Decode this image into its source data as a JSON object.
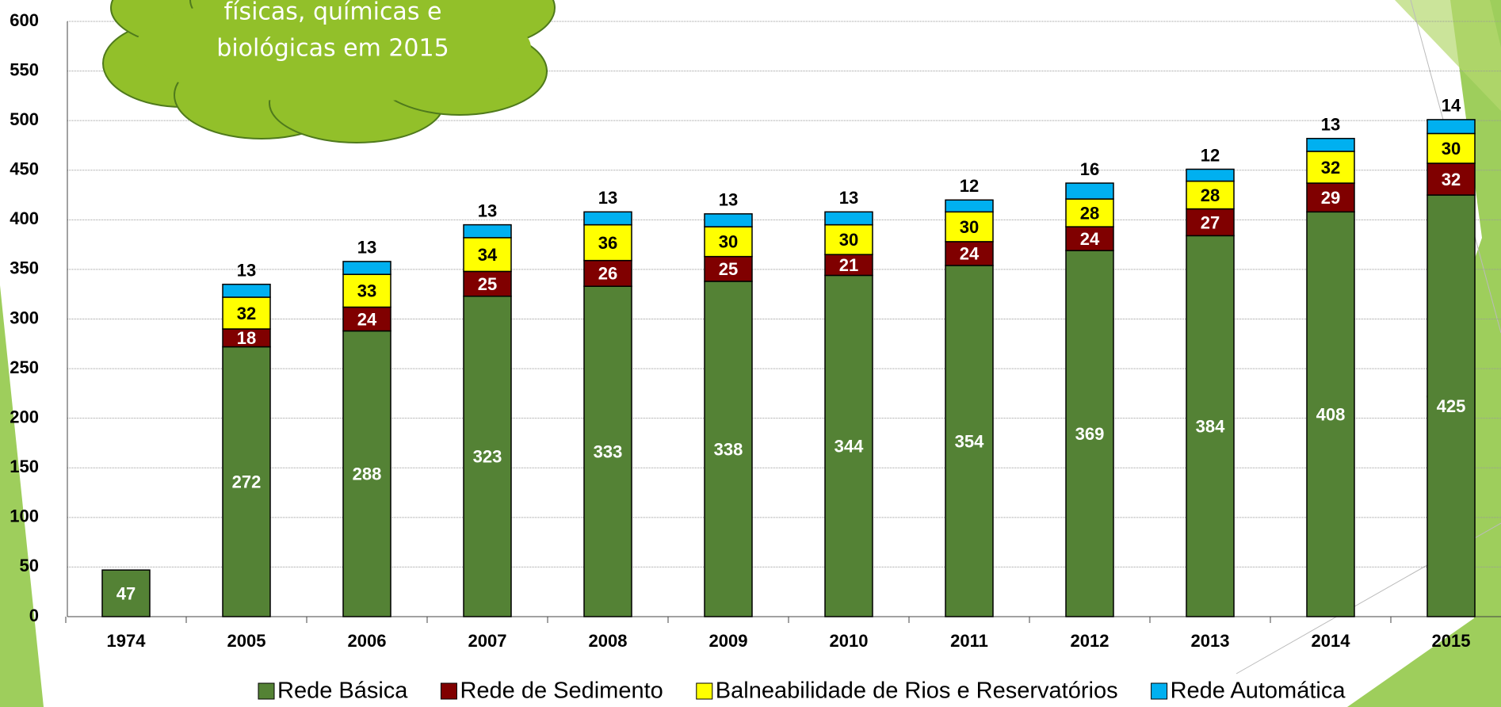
{
  "chart_data": {
    "type": "stacked-bar",
    "annotation": [
      "físicas, químicas e",
      "biológicas em 2015"
    ],
    "categories": [
      "1974",
      "2005",
      "2006",
      "2007",
      "2008",
      "2009",
      "2010",
      "2011",
      "2012",
      "2013",
      "2014",
      "2015"
    ],
    "series": [
      {
        "name": "Rede Básica",
        "color": "#548235",
        "values": [
          47,
          272,
          288,
          323,
          333,
          338,
          344,
          354,
          369,
          384,
          408,
          425
        ]
      },
      {
        "name": "Rede de Sedimento",
        "color": "#800000",
        "values": [
          null,
          18,
          24,
          25,
          26,
          25,
          21,
          24,
          24,
          27,
          29,
          32
        ]
      },
      {
        "name": "Balneabilidade de Rios e Reservatórios",
        "color": "#ffff00",
        "values": [
          null,
          32,
          33,
          34,
          36,
          30,
          30,
          30,
          28,
          28,
          32,
          30
        ]
      },
      {
        "name": "Rede Automática",
        "color": "#00b0f0",
        "values": [
          null,
          13,
          13,
          13,
          13,
          13,
          13,
          12,
          16,
          12,
          13,
          14
        ]
      }
    ],
    "ylim": [
      0,
      600
    ],
    "yticks": [
      0,
      50,
      100,
      150,
      200,
      250,
      300,
      350,
      400,
      450,
      500,
      550,
      600
    ],
    "grid": true,
    "legend": "bottom"
  }
}
